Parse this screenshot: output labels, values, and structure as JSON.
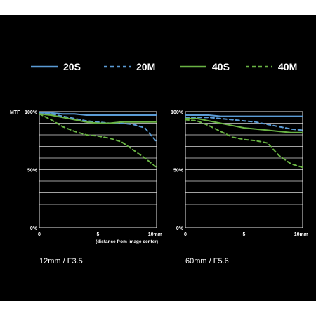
{
  "legend": [
    {
      "label": "20S",
      "color": "#5b9bd5",
      "dash": "solid"
    },
    {
      "label": "20M",
      "color": "#5b9bd5",
      "dash": "dashed"
    },
    {
      "label": "40S",
      "color": "#6ab344",
      "dash": "solid"
    },
    {
      "label": "40M",
      "color": "#6ab344",
      "dash": "dashed"
    }
  ],
  "chart_data": [
    {
      "type": "line",
      "caption": "12mm / F3.5",
      "ylabel": "MTF",
      "xlabel": "(distance from image center)",
      "x_ticks": [
        "0",
        "5",
        "10mm"
      ],
      "y_ticks": [
        "100%",
        "50%",
        "0%"
      ],
      "xlim": [
        0,
        10
      ],
      "ylim": [
        0,
        100
      ],
      "grid": true,
      "series": [
        {
          "name": "20S",
          "x": [
            0,
            1,
            2,
            3,
            4,
            5,
            6,
            7,
            8,
            9,
            10
          ],
          "y": [
            99,
            99,
            98,
            98,
            97,
            97,
            97,
            97,
            97,
            97,
            97
          ]
        },
        {
          "name": "20M",
          "x": [
            0,
            1,
            2,
            3,
            4,
            5,
            6,
            7,
            8,
            9,
            10
          ],
          "y": [
            99,
            98,
            96,
            94,
            92,
            91,
            90,
            90,
            89,
            86,
            74
          ]
        },
        {
          "name": "40S",
          "x": [
            0,
            1,
            2,
            3,
            4,
            5,
            6,
            7,
            8,
            9,
            10
          ],
          "y": [
            98,
            97,
            95,
            93,
            91,
            90,
            90,
            91,
            91,
            91,
            91
          ]
        },
        {
          "name": "40M",
          "x": [
            0,
            1,
            2,
            3,
            4,
            5,
            6,
            7,
            8,
            9,
            10
          ],
          "y": [
            98,
            93,
            87,
            83,
            80,
            79,
            77,
            74,
            67,
            60,
            52
          ]
        }
      ]
    },
    {
      "type": "line",
      "caption": "60mm / F5.6",
      "ylabel": "",
      "xlabel": "",
      "x_ticks": [
        "0",
        "5",
        "10mm"
      ],
      "y_ticks": [
        "100%",
        "50%",
        "0%"
      ],
      "xlim": [
        0,
        10
      ],
      "ylim": [
        0,
        100
      ],
      "grid": true,
      "series": [
        {
          "name": "20S",
          "x": [
            0,
            1,
            2,
            3,
            4,
            5,
            6,
            7,
            8,
            9,
            10
          ],
          "y": [
            97,
            97,
            97,
            96,
            96,
            96,
            96,
            96,
            96,
            96,
            96
          ]
        },
        {
          "name": "20M",
          "x": [
            0,
            1,
            2,
            3,
            4,
            5,
            6,
            7,
            8,
            9,
            10
          ],
          "y": [
            95,
            95,
            95,
            94,
            93,
            92,
            91,
            89,
            87,
            85,
            84
          ]
        },
        {
          "name": "40S",
          "x": [
            0,
            1,
            2,
            3,
            4,
            5,
            6,
            7,
            8,
            9,
            10
          ],
          "y": [
            94,
            94,
            92,
            90,
            88,
            86,
            85,
            84,
            83,
            82,
            82
          ]
        },
        {
          "name": "40M",
          "x": [
            0,
            1,
            2,
            3,
            4,
            5,
            6,
            7,
            8,
            9,
            10
          ],
          "y": [
            93,
            92,
            88,
            83,
            78,
            76,
            75,
            73,
            62,
            55,
            52
          ]
        }
      ]
    }
  ]
}
